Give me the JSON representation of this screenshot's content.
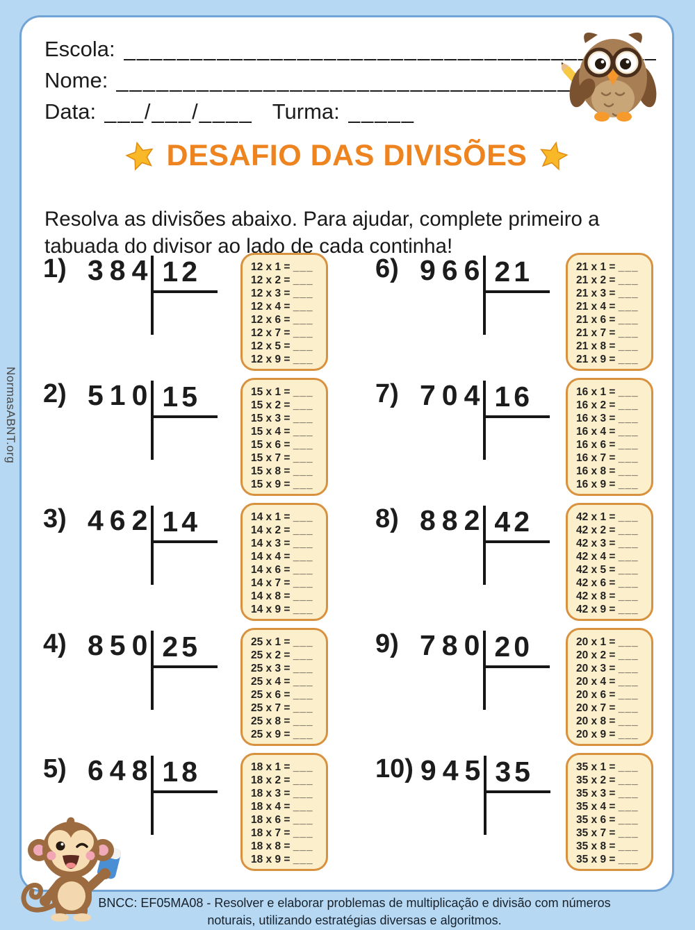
{
  "watermark": "NormasABNT.org",
  "header": {
    "school_label": "Escola:",
    "school_blank": "__________________________________________________",
    "name_label": "Nome:",
    "name_blank": "__________________________________________________",
    "date_label": "Data:",
    "date_blank": "___/___/____",
    "class_label": "Turma:",
    "class_blank": "_____"
  },
  "title": {
    "text": "DESAFIO DAS DIVISÕES"
  },
  "instructions": "Resolva as divisões abaixo. Para ajudar, complete primeiro a tabuada do divisor ao lado de cada continha!",
  "table_format": {
    "times": "x",
    "equals": "=",
    "blank": "___"
  },
  "problems": [
    {
      "num": "1)",
      "dividend": "384",
      "divisor": "12",
      "multipliers": [
        "1",
        "2",
        "3",
        "4",
        "6",
        "7",
        "5",
        "9"
      ]
    },
    {
      "num": "2)",
      "dividend": "510",
      "divisor": "15",
      "multipliers": [
        "1",
        "2",
        "3",
        "4",
        "6",
        "7",
        "8",
        "9"
      ]
    },
    {
      "num": "3)",
      "dividend": "462",
      "divisor": "14",
      "multipliers": [
        "1",
        "2",
        "3",
        "4",
        "6",
        "7",
        "8",
        "9"
      ]
    },
    {
      "num": "4)",
      "dividend": "850",
      "divisor": "25",
      "multipliers": [
        "1",
        "2",
        "3",
        "4",
        "6",
        "7",
        "8",
        "9"
      ]
    },
    {
      "num": "5)",
      "dividend": "648",
      "divisor": "18",
      "multipliers": [
        "1",
        "2",
        "3",
        "4",
        "6",
        "7",
        "8",
        "9"
      ]
    },
    {
      "num": "6)",
      "dividend": "966",
      "divisor": "21",
      "multipliers": [
        "1",
        "2",
        "3",
        "4",
        "6",
        "7",
        "8",
        "9"
      ]
    },
    {
      "num": "7)",
      "dividend": "704",
      "divisor": "16",
      "multipliers": [
        "1",
        "2",
        "3",
        "4",
        "6",
        "7",
        "8",
        "9"
      ]
    },
    {
      "num": "8)",
      "dividend": "882",
      "divisor": "42",
      "multipliers": [
        "1",
        "2",
        "3",
        "4",
        "5",
        "6",
        "8",
        "9"
      ]
    },
    {
      "num": "9)",
      "dividend": "780",
      "divisor": "20",
      "multipliers": [
        "1",
        "2",
        "3",
        "4",
        "6",
        "7",
        "8",
        "9"
      ]
    },
    {
      "num": "10)",
      "dividend": "945",
      "divisor": "35",
      "multipliers": [
        "1",
        "2",
        "3",
        "4",
        "6",
        "7",
        "8",
        "9"
      ]
    }
  ],
  "footer": {
    "line1": "BNCC: EF05MA08 - Resolver e elaborar problemas de multiplicação e divisão com números",
    "line2": "noturais, utilizando estratégias diversas e algoritmos."
  },
  "colors": {
    "page_blue": "#b7d8f3",
    "card_border_blue": "#71a3d6",
    "title_orange": "#ee8420",
    "star_gold": "#f9b827",
    "table_bg": "#fcefcc",
    "table_border": "#d8913f",
    "ink": "#1c1c1c"
  }
}
